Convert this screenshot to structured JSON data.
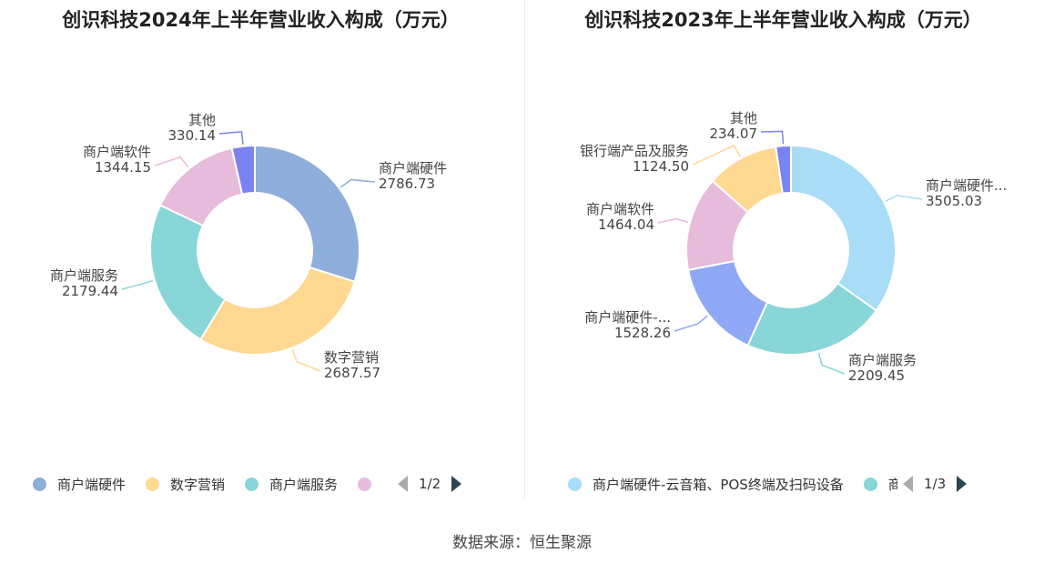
{
  "chart_data": [
    {
      "type": "pie",
      "variant": "donut",
      "title": "创识科技2024年上半年营业收入构成（万元）",
      "slices": [
        {
          "label": "商户端硬件",
          "value": 2786.73,
          "value_label": "2786.73",
          "color": "#8eaedc"
        },
        {
          "label": "数字营销",
          "value": 2687.57,
          "value_label": "2687.57",
          "color": "#ffd892"
        },
        {
          "label": "商户端服务",
          "value": 2179.44,
          "value_label": "2179.44",
          "color": "#88d6d7"
        },
        {
          "label": "商户端软件",
          "value": 1344.15,
          "value_label": "1344.15",
          "color": "#e7bbdb"
        },
        {
          "label": "其他",
          "value": 330.14,
          "value_label": "330.14",
          "color": "#7b83f2"
        }
      ],
      "legend": {
        "position": "bottom",
        "visible_items": [
          {
            "label": "商户端硬件",
            "color": "#8eaedc"
          },
          {
            "label": "数字营销",
            "color": "#ffd892"
          },
          {
            "label": "商户端服务",
            "color": "#88d6d7"
          },
          {
            "label": "",
            "color": "#e7bbdb"
          }
        ],
        "page": "1/2"
      }
    },
    {
      "type": "pie",
      "variant": "donut",
      "title": "创识科技2023年上半年营业收入构成（万元）",
      "slices": [
        {
          "label": "商户端硬件...",
          "value": 3505.03,
          "value_label": "3505.03",
          "color": "#a8dcf7"
        },
        {
          "label": "商户端服务",
          "value": 2209.45,
          "value_label": "2209.45",
          "color": "#88d6d7"
        },
        {
          "label": "商户端硬件-...",
          "value": 1528.26,
          "value_label": "1528.26",
          "color": "#8fa8f5"
        },
        {
          "label": "商户端软件",
          "value": 1464.04,
          "value_label": "1464.04",
          "color": "#e7bbdb"
        },
        {
          "label": "银行端产品及服务",
          "value": 1124.5,
          "value_label": "1124.50",
          "color": "#ffd892"
        },
        {
          "label": "其他",
          "value": 234.07,
          "value_label": "234.07",
          "color": "#7b83f2"
        }
      ],
      "legend": {
        "position": "bottom",
        "visible_items": [
          {
            "label": "商户端硬件-云音箱、POS终端及扫码设备",
            "color": "#a8dcf7"
          },
          {
            "label": "商户",
            "color": "#88d6d7"
          }
        ],
        "page": "1/3"
      }
    }
  ],
  "footer": {
    "source": "数据来源：恒生聚源"
  }
}
